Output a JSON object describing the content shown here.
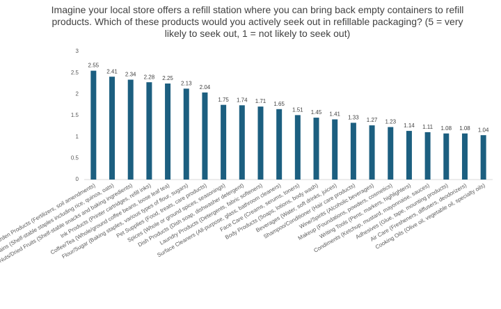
{
  "chart_data": {
    "type": "bar",
    "title": "Imagine your local store offers a refill station where you can bring back empty containers to refill products. Which of these products would you actively seek out in refillable packaging? (5 = very likely to seek out, 1 = not likely to seek out)",
    "categories": [
      "Garden Products (Fertilizers, soil amendments)",
      "Rice/Grains (Shelf-stable staples including rice, quinoa, oats)",
      "Nuts/Dried Fruits (Shelf-stable snacks and baking ingredients)",
      "Ink Products (Printer cartridges, refill inks)",
      "Coffee/Tea (Whole/ground coffee beans, loose leaf tea)",
      "Flour/Sugar (Baking staples, various types of flour, sugars)",
      "Pet Supplies (Food, treats, care products)",
      "Spices (Whole or ground spices, seasonings)",
      "Dish Products (Dish soap, dishwasher detergent)",
      "Laundry Products (Detergents, fabric softeners)",
      "Surface Cleaners (All-purpose, glass, bathroom cleaners)",
      "Face Care (Creams, serums, toners)",
      "Body Products (Soaps, lotions, body wash)",
      "Beverages (Water, soft drinks, juices)",
      "Shampoo/Conditioner (Hair care products)",
      "Wine/Spirits (Alcoholic beverages)",
      "Makeup (Foundations, powders, cosmetics)",
      "Writing Tools (Pens, markers, highlighters)",
      "Condiments (Ketchup, mustard, mayonnaise, sauces)",
      "Adhesives (Glue, tape, mounting products)",
      "Air Care (Fresheners, diffusers, deodorizers)",
      "Cooking Oils (Olive oil, vegetable oil, specialty oils)"
    ],
    "values": [
      2.55,
      2.41,
      2.34,
      2.28,
      2.25,
      2.13,
      2.04,
      1.75,
      1.74,
      1.71,
      1.65,
      1.51,
      1.45,
      1.41,
      1.33,
      1.27,
      1.23,
      1.14,
      1.11,
      1.08,
      1.08,
      1.04
    ],
    "color": "#1c5f80",
    "ylim": [
      0,
      3
    ],
    "yticks": [
      0,
      0.5,
      1,
      1.5,
      2,
      2.5,
      3
    ],
    "grid": false
  }
}
